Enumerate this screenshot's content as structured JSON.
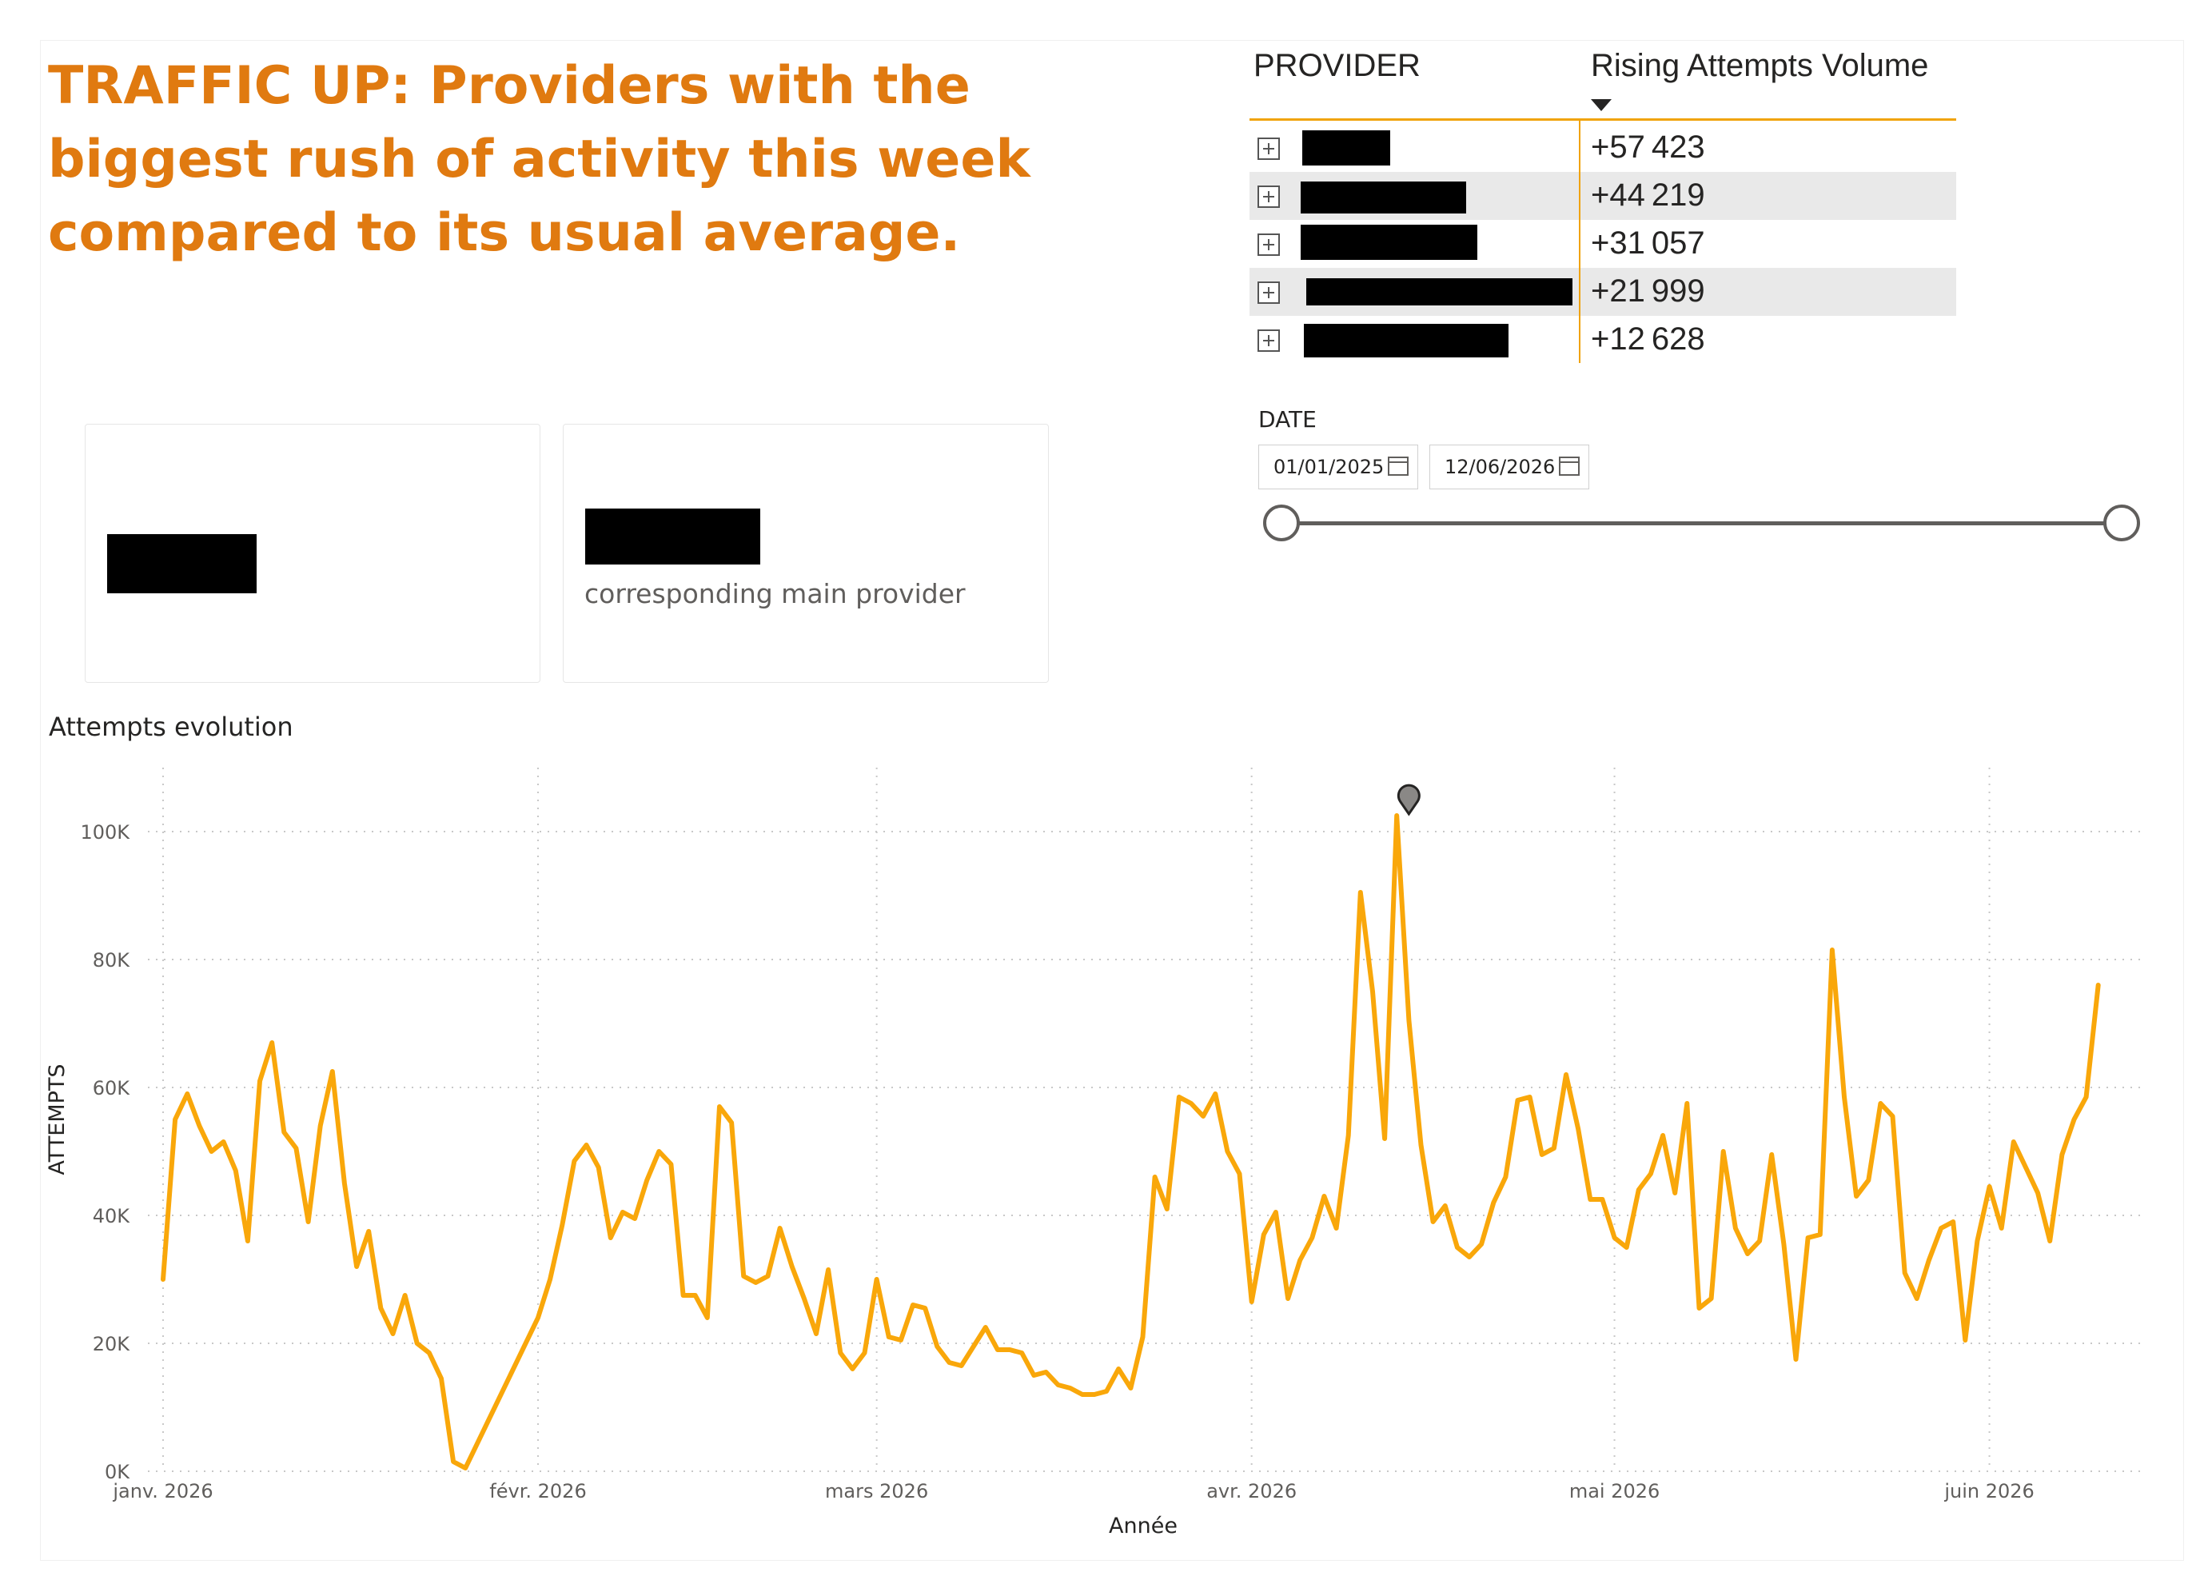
{
  "headline": "TRAFFIC UP: Providers with the biggest rush of activity this week compared to its usual average.",
  "table": {
    "col_provider": "PROVIDER",
    "col_value": "Rising Attempts Volume",
    "rows": [
      {
        "value": "+57 423"
      },
      {
        "value": "+44 219"
      },
      {
        "value": "+31 057"
      },
      {
        "value": "+21 999"
      },
      {
        "value": "+12 628"
      }
    ]
  },
  "cards": {
    "card2_subtitle": "corresponding main provider"
  },
  "date_slicer": {
    "title": "DATE",
    "start": "01/01/2025",
    "end": "12/06/2026"
  },
  "chart_title": "Attempts evolution",
  "colors": {
    "headline": "#e07a10",
    "line": "#f9a70a",
    "accent": "#f0a30a"
  },
  "chart_data": {
    "type": "line",
    "xlabel": "Année",
    "ylabel": "ATTEMPTS",
    "ylim": [
      0,
      100000
    ],
    "y_ticks": [
      0,
      20000,
      40000,
      60000,
      80000,
      100000
    ],
    "y_tick_labels": [
      "0K",
      "20K",
      "40K",
      "60K",
      "80K",
      "100K"
    ],
    "x_tick_labels": [
      "janv. 2026",
      "févr. 2026",
      "mars 2026",
      "avr. 2026",
      "mai 2026",
      "juin 2026"
    ],
    "x_tick_dates": [
      "2026-01-01",
      "2026-02-01",
      "2026-03-01",
      "2026-04-01",
      "2026-05-01",
      "2026-06-01"
    ],
    "x_range": [
      "2026-01-01",
      "2026-06-12"
    ],
    "grid": true,
    "anomaly_marker_date": "2026-04-14",
    "series": [
      {
        "name": "",
        "points": [
          [
            "2026-01-01",
            30000
          ],
          [
            "2026-01-02",
            55000
          ],
          [
            "2026-01-03",
            59000
          ],
          [
            "2026-01-04",
            54000
          ],
          [
            "2026-01-05",
            50000
          ],
          [
            "2026-01-06",
            51500
          ],
          [
            "2026-01-07",
            47000
          ],
          [
            "2026-01-08",
            36000
          ],
          [
            "2026-01-09",
            61000
          ],
          [
            "2026-01-10",
            67000
          ],
          [
            "2026-01-11",
            53000
          ],
          [
            "2026-01-12",
            50500
          ],
          [
            "2026-01-13",
            39000
          ],
          [
            "2026-01-14",
            54000
          ],
          [
            "2026-01-15",
            62500
          ],
          [
            "2026-01-16",
            45000
          ],
          [
            "2026-01-17",
            32000
          ],
          [
            "2026-01-18",
            37500
          ],
          [
            "2026-01-19",
            25500
          ],
          [
            "2026-01-20",
            21500
          ],
          [
            "2026-01-21",
            27500
          ],
          [
            "2026-01-22",
            20000
          ],
          [
            "2026-01-23",
            18500
          ],
          [
            "2026-01-24",
            14500
          ],
          [
            "2026-01-25",
            1500
          ],
          [
            "2026-01-26",
            500
          ],
          [
            "2026-02-01",
            24000
          ],
          [
            "2026-02-02",
            30000
          ],
          [
            "2026-02-03",
            38500
          ],
          [
            "2026-02-04",
            48500
          ],
          [
            "2026-02-05",
            51000
          ],
          [
            "2026-02-06",
            47500
          ],
          [
            "2026-02-07",
            36500
          ],
          [
            "2026-02-08",
            40500
          ],
          [
            "2026-02-09",
            39500
          ],
          [
            "2026-02-10",
            45500
          ],
          [
            "2026-02-11",
            50000
          ],
          [
            "2026-02-12",
            48000
          ],
          [
            "2026-02-13",
            27500
          ],
          [
            "2026-02-14",
            27500
          ],
          [
            "2026-02-15",
            24000
          ],
          [
            "2026-02-16",
            57000
          ],
          [
            "2026-02-17",
            54500
          ],
          [
            "2026-02-18",
            30500
          ],
          [
            "2026-02-19",
            29500
          ],
          [
            "2026-02-20",
            30500
          ],
          [
            "2026-02-21",
            38000
          ],
          [
            "2026-02-22",
            32000
          ],
          [
            "2026-02-23",
            27000
          ],
          [
            "2026-02-24",
            21500
          ],
          [
            "2026-02-25",
            31500
          ],
          [
            "2026-02-26",
            18500
          ],
          [
            "2026-02-27",
            16000
          ],
          [
            "2026-02-28",
            18500
          ],
          [
            "2026-03-01",
            30000
          ],
          [
            "2026-03-02",
            21000
          ],
          [
            "2026-03-03",
            20500
          ],
          [
            "2026-03-04",
            26000
          ],
          [
            "2026-03-05",
            25500
          ],
          [
            "2026-03-06",
            19500
          ],
          [
            "2026-03-07",
            17000
          ],
          [
            "2026-03-08",
            16500
          ],
          [
            "2026-03-09",
            19500
          ],
          [
            "2026-03-10",
            22500
          ],
          [
            "2026-03-11",
            19000
          ],
          [
            "2026-03-12",
            19000
          ],
          [
            "2026-03-13",
            18500
          ],
          [
            "2026-03-14",
            15000
          ],
          [
            "2026-03-15",
            15500
          ],
          [
            "2026-03-16",
            13500
          ],
          [
            "2026-03-17",
            13000
          ],
          [
            "2026-03-18",
            12000
          ],
          [
            "2026-03-19",
            12000
          ],
          [
            "2026-03-20",
            12500
          ],
          [
            "2026-03-21",
            16000
          ],
          [
            "2026-03-22",
            13000
          ],
          [
            "2026-03-23",
            21000
          ],
          [
            "2026-03-24",
            46000
          ],
          [
            "2026-03-25",
            41000
          ],
          [
            "2026-03-26",
            58500
          ],
          [
            "2026-03-27",
            57500
          ],
          [
            "2026-03-28",
            55500
          ],
          [
            "2026-03-29",
            59000
          ],
          [
            "2026-03-30",
            50000
          ],
          [
            "2026-03-31",
            46500
          ],
          [
            "2026-04-01",
            26500
          ],
          [
            "2026-04-02",
            37000
          ],
          [
            "2026-04-03",
            40500
          ],
          [
            "2026-04-04",
            27000
          ],
          [
            "2026-04-05",
            33000
          ],
          [
            "2026-04-06",
            36500
          ],
          [
            "2026-04-07",
            43000
          ],
          [
            "2026-04-08",
            38000
          ],
          [
            "2026-04-09",
            52500
          ],
          [
            "2026-04-10",
            90500
          ],
          [
            "2026-04-11",
            75000
          ],
          [
            "2026-04-12",
            52000
          ],
          [
            "2026-04-13",
            102500
          ],
          [
            "2026-04-14",
            70500
          ],
          [
            "2026-04-15",
            51000
          ],
          [
            "2026-04-16",
            39000
          ],
          [
            "2026-04-17",
            41500
          ],
          [
            "2026-04-18",
            35000
          ],
          [
            "2026-04-19",
            33500
          ],
          [
            "2026-04-20",
            35500
          ],
          [
            "2026-04-21",
            42000
          ],
          [
            "2026-04-22",
            46000
          ],
          [
            "2026-04-23",
            58000
          ],
          [
            "2026-04-24",
            58500
          ],
          [
            "2026-04-25",
            49500
          ],
          [
            "2026-04-26",
            50500
          ],
          [
            "2026-04-27",
            62000
          ],
          [
            "2026-04-28",
            53500
          ],
          [
            "2026-04-29",
            42500
          ],
          [
            "2026-04-30",
            42500
          ],
          [
            "2026-05-01",
            36500
          ],
          [
            "2026-05-02",
            35000
          ],
          [
            "2026-05-03",
            44000
          ],
          [
            "2026-05-04",
            46500
          ],
          [
            "2026-05-05",
            52500
          ],
          [
            "2026-05-06",
            43500
          ],
          [
            "2026-05-07",
            57500
          ],
          [
            "2026-05-08",
            25500
          ],
          [
            "2026-05-09",
            27000
          ],
          [
            "2026-05-10",
            50000
          ],
          [
            "2026-05-11",
            38000
          ],
          [
            "2026-05-12",
            34000
          ],
          [
            "2026-05-13",
            36000
          ],
          [
            "2026-05-14",
            49500
          ],
          [
            "2026-05-15",
            35500
          ],
          [
            "2026-05-16",
            17500
          ],
          [
            "2026-05-17",
            36500
          ],
          [
            "2026-05-18",
            37000
          ],
          [
            "2026-05-19",
            81500
          ],
          [
            "2026-05-20",
            58500
          ],
          [
            "2026-05-21",
            43000
          ],
          [
            "2026-05-22",
            45500
          ],
          [
            "2026-05-23",
            57500
          ],
          [
            "2026-05-24",
            55500
          ],
          [
            "2026-05-25",
            31000
          ],
          [
            "2026-05-26",
            27000
          ],
          [
            "2026-05-27",
            33000
          ],
          [
            "2026-05-28",
            38000
          ],
          [
            "2026-05-29",
            39000
          ],
          [
            "2026-05-30",
            20500
          ],
          [
            "2026-05-31",
            36000
          ],
          [
            "2026-06-01",
            44500
          ],
          [
            "2026-06-02",
            38000
          ],
          [
            "2026-06-03",
            51500
          ],
          [
            "2026-06-04",
            47500
          ],
          [
            "2026-06-05",
            43500
          ],
          [
            "2026-06-06",
            36000
          ],
          [
            "2026-06-07",
            49500
          ],
          [
            "2026-06-08",
            55000
          ],
          [
            "2026-06-09",
            58500
          ],
          [
            "2026-06-10",
            76000
          ]
        ]
      }
    ]
  }
}
